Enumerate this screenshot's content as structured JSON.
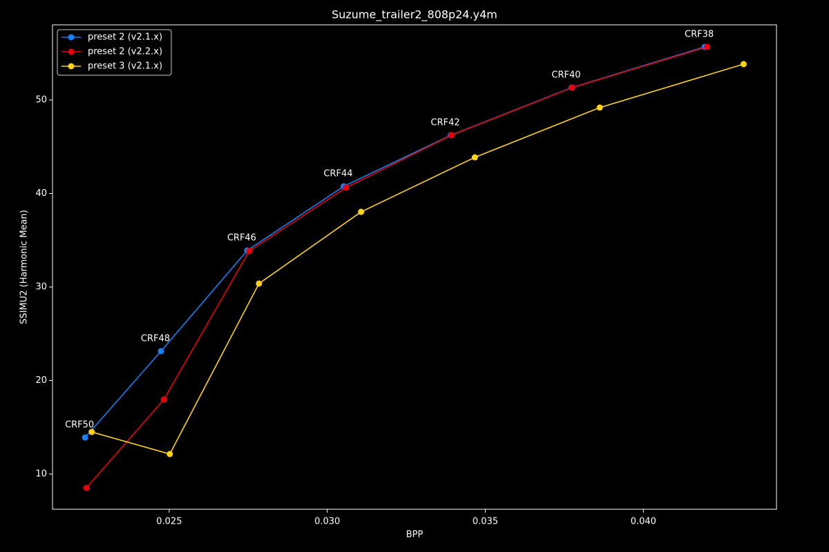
{
  "chart_data": {
    "type": "line",
    "title": "Suzume_trailer2_808p24.y4m",
    "x_label": "BPP",
    "y_label": "SSIMU2 (Harmonic Mean)",
    "xlim": [
      0.02131,
      0.04421
    ],
    "ylim": [
      6.24,
      58.04
    ],
    "xticks": [
      0.025,
      {
        "value": 0.03,
        "label": "0.030"
      },
      0.035,
      {
        "value": 0.04,
        "label": "0.040"
      }
    ],
    "yticks": [
      10,
      20,
      30,
      40,
      50
    ],
    "grid": false,
    "legend": "upper left",
    "series": [
      {
        "name": "preset 2 (v2.1.x)",
        "color": "#1a7ff0",
        "x": [
          0.02234,
          0.02474,
          0.02747,
          0.03052,
          0.03391,
          0.03773,
          0.04194
        ],
        "values": [
          13.91,
          23.14,
          33.91,
          40.77,
          46.24,
          51.33,
          55.68
        ],
        "point_labels": [
          "CRF50",
          "CRF48",
          "CRF46",
          "CRF44",
          "CRF42",
          "CRF40",
          "CRF38"
        ]
      },
      {
        "name": "preset 2 (v2.2.x)",
        "color": "#e8000b",
        "x": [
          0.02238,
          0.02483,
          0.02753,
          0.03059,
          0.03393,
          0.03775,
          0.04201
        ],
        "values": [
          8.52,
          17.97,
          33.84,
          40.63,
          46.24,
          51.33,
          55.68
        ]
      },
      {
        "name": "preset 3 (v2.1.x)",
        "color": "#ffd21a",
        "x": [
          0.02255,
          0.02502,
          0.02784,
          0.03107,
          0.03467,
          0.03862,
          0.04317
        ],
        "values": [
          14.5,
          12.14,
          30.37,
          38.04,
          43.87,
          49.19,
          53.84
        ]
      }
    ]
  }
}
